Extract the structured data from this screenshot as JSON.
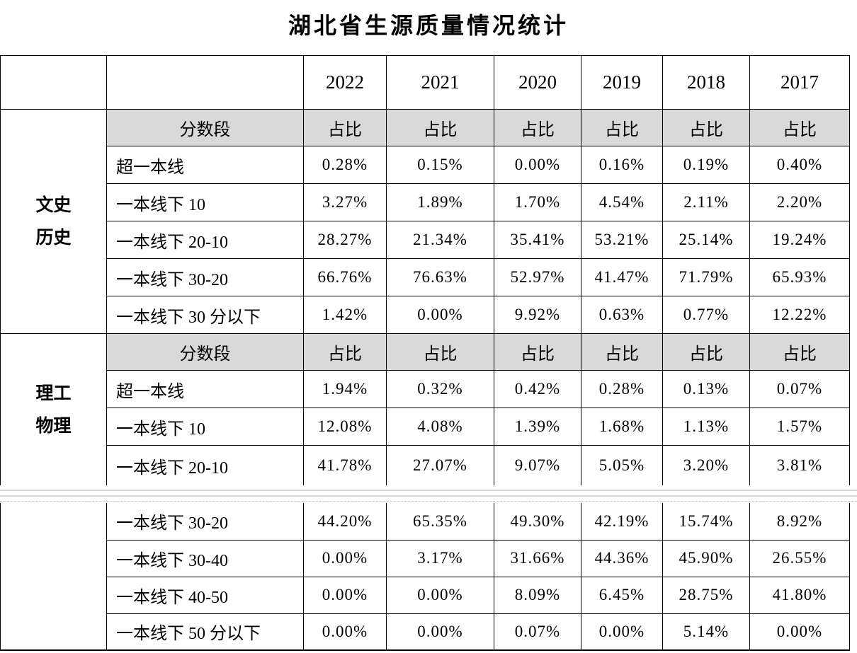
{
  "title": "湖北省生源质量情况统计",
  "years": [
    "2022",
    "2021",
    "2020",
    "2019",
    "2018",
    "2017"
  ],
  "labels": {
    "score_band": "分数段",
    "ratio": "占比"
  },
  "sections": [
    {
      "group_lines": [
        "文史",
        "历史"
      ],
      "rows": [
        {
          "label": "超一本线",
          "values": [
            "0.28%",
            "0.15%",
            "0.00%",
            "0.16%",
            "0.19%",
            "0.40%"
          ]
        },
        {
          "label": "一本线下 10",
          "values": [
            "3.27%",
            "1.89%",
            "1.70%",
            "4.54%",
            "2.11%",
            "2.20%"
          ]
        },
        {
          "label": "一本线下 20-10",
          "values": [
            "28.27%",
            "21.34%",
            "35.41%",
            "53.21%",
            "25.14%",
            "19.24%"
          ]
        },
        {
          "label": "一本线下 30-20",
          "values": [
            "66.76%",
            "76.63%",
            "52.97%",
            "41.47%",
            "71.79%",
            "65.93%"
          ]
        },
        {
          "label": "一本线下 30 分以下",
          "values": [
            "1.42%",
            "0.00%",
            "9.92%",
            "0.63%",
            "0.77%",
            "12.22%"
          ]
        }
      ]
    },
    {
      "group_lines": [
        "理工",
        "物理"
      ],
      "rows": [
        {
          "label": "超一本线",
          "values": [
            "1.94%",
            "0.32%",
            "0.42%",
            "0.28%",
            "0.13%",
            "0.07%"
          ]
        },
        {
          "label": "一本线下 10",
          "values": [
            "12.08%",
            "4.08%",
            "1.39%",
            "1.68%",
            "1.13%",
            "1.57%"
          ]
        },
        {
          "label": "一本线下 20-10",
          "values": [
            "41.78%",
            "27.07%",
            "9.07%",
            "5.05%",
            "3.20%",
            "3.81%"
          ]
        }
      ]
    },
    {
      "group_lines": [],
      "rows": [
        {
          "label": "一本线下 30-20",
          "values": [
            "44.20%",
            "65.35%",
            "49.30%",
            "42.19%",
            "15.74%",
            "8.92%"
          ]
        },
        {
          "label": "一本线下 30-40",
          "values": [
            "0.00%",
            "3.17%",
            "31.66%",
            "44.36%",
            "45.90%",
            "26.55%"
          ]
        },
        {
          "label": "一本线下 40-50",
          "values": [
            "0.00%",
            "0.00%",
            "8.09%",
            "6.45%",
            "28.75%",
            "41.80%"
          ]
        },
        {
          "label": "一本线下 50 分以下",
          "values": [
            "0.00%",
            "0.00%",
            "0.07%",
            "0.00%",
            "5.14%",
            "0.00%"
          ]
        }
      ]
    }
  ],
  "colors": {
    "header_shading": "#d9d9d9",
    "table_border": "#000000",
    "page_margin_line": "#d6d6d6",
    "page_boundary_dash": "#c9c9c9"
  }
}
